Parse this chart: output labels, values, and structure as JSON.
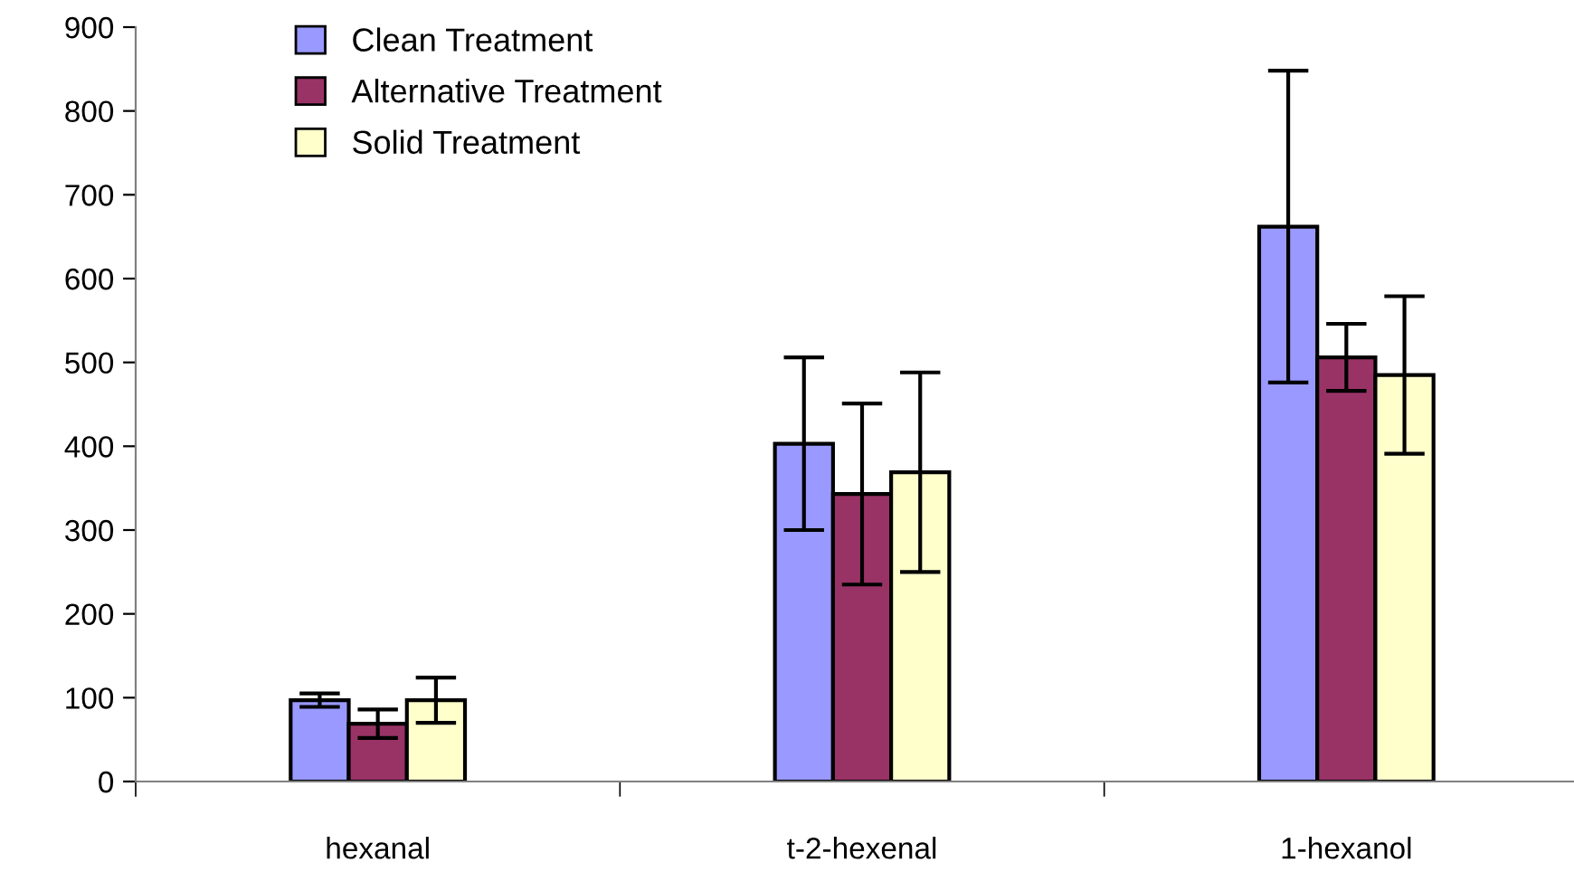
{
  "chart_data": {
    "type": "bar",
    "categories": [
      "hexanal",
      "t-2-hexenal",
      "1-hexanol"
    ],
    "series": [
      {
        "name": "Clean Treatment",
        "color": "#9999ff",
        "values": [
          97,
          403,
          662
        ],
        "errors": [
          8,
          103,
          186
        ]
      },
      {
        "name": "Alternative Treatment",
        "color": "#993366",
        "values": [
          69,
          343,
          506
        ],
        "errors": [
          17,
          108,
          40
        ]
      },
      {
        "name": "Solid Treatment",
        "color": "#ffffcc",
        "values": [
          97,
          369,
          485
        ],
        "errors": [
          27,
          119,
          94
        ]
      }
    ],
    "ylim": [
      0,
      900
    ],
    "yticks": [
      0,
      100,
      200,
      300,
      400,
      500,
      600,
      700,
      800,
      900
    ],
    "grid": false,
    "legend": "top left"
  }
}
